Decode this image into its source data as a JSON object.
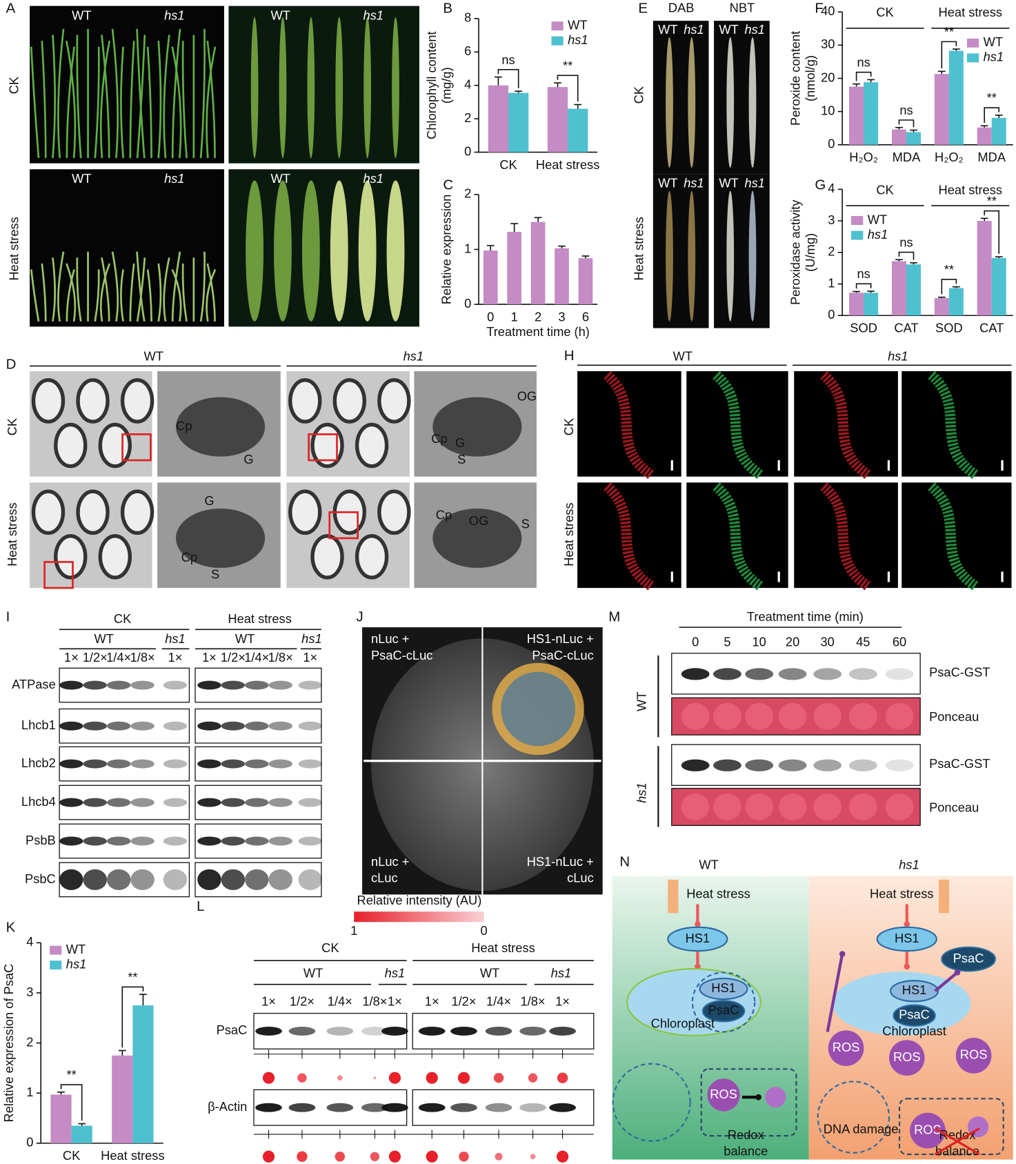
{
  "panel_letters": [
    "A",
    "B",
    "C",
    "D",
    "E",
    "F",
    "G",
    "H",
    "I",
    "J",
    "K",
    "L",
    "M",
    "N"
  ],
  "chart_data": [
    {
      "type": "bar",
      "y_label": [
        "Chlorophyll content",
        "(mg/g)"
      ],
      "categories": [
        "CK",
        "Heat stress"
      ],
      "series": [
        {
          "name": "WT",
          "color": "#c48bc4",
          "values": [
            4.0,
            3.9
          ],
          "errors": [
            0.5,
            0.25
          ]
        },
        {
          "name": "hs1",
          "color": "#4fc0cf",
          "values": [
            3.55,
            2.6
          ],
          "errors": [
            0.1,
            0.25
          ]
        }
      ],
      "annotations": [
        "ns",
        "**"
      ],
      "ylim": [
        0,
        8
      ],
      "yticks": [
        0,
        2,
        4,
        6,
        8
      ],
      "legend": "top-right"
    },
    {
      "type": "bar",
      "y_label": [
        "Relative expression"
      ],
      "x_label": "Treatment time (h)",
      "categories": [
        "0",
        "1",
        "2",
        "3",
        "6"
      ],
      "values": [
        0.98,
        1.32,
        1.5,
        1.02,
        0.84
      ],
      "errors": [
        0.09,
        0.15,
        0.08,
        0.04,
        0.04
      ],
      "color": "#c48bc4",
      "ylim": [
        0,
        2
      ],
      "yticks": [
        0,
        1,
        2
      ]
    },
    {
      "type": "bar",
      "y_label": [
        "Peroxide content",
        "(nmol/g)"
      ],
      "categories": [
        "H₂O₂",
        "MDA",
        "H₂O₂",
        "MDA"
      ],
      "groups": [
        "CK",
        "Heat stress"
      ],
      "series": [
        {
          "name": "WT",
          "color": "#c48bc4",
          "values": [
            17.5,
            4.6,
            21.3,
            5.2
          ],
          "errors": [
            0.8,
            0.6,
            0.8,
            0.5
          ]
        },
        {
          "name": "hs1",
          "color": "#4fc0cf",
          "values": [
            18.8,
            3.8,
            28.3,
            8.1
          ],
          "errors": [
            0.8,
            0.6,
            0.5,
            0.8
          ]
        }
      ],
      "annotations": [
        "ns",
        "ns",
        "**",
        "**"
      ],
      "ylim": [
        0,
        40
      ],
      "yticks": [
        0,
        10,
        20,
        30,
        40
      ],
      "legend": "top-right"
    },
    {
      "type": "bar",
      "y_label": [
        "Peroxidase activity",
        "(U/mg)"
      ],
      "categories": [
        "SOD",
        "CAT",
        "SOD",
        "CAT"
      ],
      "groups": [
        "CK",
        "Heat stress"
      ],
      "series": [
        {
          "name": "WT",
          "color": "#c48bc4",
          "values": [
            0.72,
            1.72,
            0.55,
            3.0
          ],
          "errors": [
            0.04,
            0.05,
            0.03,
            0.08
          ]
        },
        {
          "name": "hs1",
          "color": "#4fc0cf",
          "values": [
            0.72,
            1.62,
            0.87,
            1.82
          ],
          "errors": [
            0.05,
            0.05,
            0.04,
            0.04
          ]
        }
      ],
      "annotations": [
        "ns",
        "ns",
        "**",
        "**"
      ],
      "ylim": [
        0,
        4
      ],
      "yticks": [
        0,
        1,
        2,
        3,
        4
      ],
      "legend": "top-left"
    },
    {
      "type": "bar",
      "y_label": [
        "Relative expression of PsaC"
      ],
      "categories": [
        "CK",
        "Heat stress"
      ],
      "series": [
        {
          "name": "WT",
          "color": "#c48bc4",
          "values": [
            0.97,
            1.75
          ],
          "errors": [
            0.05,
            0.1
          ]
        },
        {
          "name": "hs1",
          "color": "#4fc0cf",
          "values": [
            0.35,
            2.75
          ],
          "errors": [
            0.04,
            0.22
          ]
        }
      ],
      "annotations": [
        "**",
        "**"
      ],
      "ylim": [
        0,
        4
      ],
      "yticks": [
        0,
        1,
        2,
        3,
        4
      ],
      "legend": "top-left"
    }
  ],
  "panel_a": {
    "genotypes": [
      "WT",
      "hs1"
    ],
    "conditions": [
      "CK",
      "Heat stress"
    ]
  },
  "panel_d": {
    "genotypes": [
      "WT",
      "hs1"
    ],
    "conditions": [
      "CK",
      "Heat stress"
    ],
    "callouts": [
      [
        "Cp",
        "G"
      ],
      [
        "OG",
        "Cp",
        "G",
        "S"
      ],
      [
        "G",
        "Cp",
        "S"
      ],
      [
        "S",
        "Cp",
        "OG"
      ]
    ]
  },
  "panel_e": {
    "stains": [
      "DAB",
      "NBT"
    ],
    "genotypes": [
      "WT",
      "hs1"
    ],
    "conditions": [
      "CK",
      "Heat stress"
    ]
  },
  "panel_h": {
    "genotypes": [
      "WT",
      "hs1"
    ],
    "conditions": [
      "CK",
      "Heat stress"
    ]
  },
  "panel_i": {
    "conditions": [
      "CK",
      "Heat stress"
    ],
    "genotypes": [
      "WT",
      "hs1"
    ],
    "dilutions": [
      "1×",
      "1/2×",
      "1/4×",
      "1/8×",
      "1×"
    ],
    "proteins": [
      "ATPase",
      "Lhcb1",
      "Lhcb2",
      "Lhcb4",
      "PsbB",
      "PsbC"
    ]
  },
  "panel_j": {
    "quadrants": [
      [
        "nLuc +",
        "PsaC-cLuc"
      ],
      [
        "HS1-nLuc +",
        "PsaC-cLuc"
      ],
      [
        "nLuc +",
        "cLuc"
      ],
      [
        "HS1-nLuc +",
        "cLuc"
      ]
    ]
  },
  "panel_k": {},
  "panel_l": {
    "scale_title": "Relative intensity (AU)",
    "scale_ends": [
      1,
      0
    ],
    "conditions": [
      "CK",
      "Heat stress"
    ],
    "genotypes": [
      "WT",
      "hs1"
    ],
    "dilutions": [
      "1×",
      "1/2×",
      "1/4×",
      "1/8×",
      "1×"
    ],
    "proteins": [
      "PsaC",
      "β-Actin"
    ],
    "intensities": [
      [
        1,
        0.6,
        0.2,
        0.05,
        1,
        1,
        1,
        0.7,
        0.6,
        0.8
      ],
      [
        1,
        0.8,
        0.7,
        0.6,
        1,
        1,
        0.7,
        0.4,
        0.2,
        1
      ]
    ]
  },
  "panel_m": {
    "title": "Treatment time (min)",
    "times": [
      "0",
      "5",
      "10",
      "20",
      "30",
      "45",
      "60"
    ],
    "genotypes": [
      "WT",
      "hs1"
    ],
    "rows": [
      "PsaC-GST",
      "Ponceau"
    ]
  },
  "panel_n": {
    "genotypes": [
      "WT",
      "hs1"
    ],
    "stress": "Heat stress",
    "protein": "HS1",
    "target": "PsaC",
    "organelle": "Chloroplast",
    "ros": "ROS",
    "redox": [
      "Redox",
      "balance"
    ],
    "damage": "DNA damage"
  }
}
